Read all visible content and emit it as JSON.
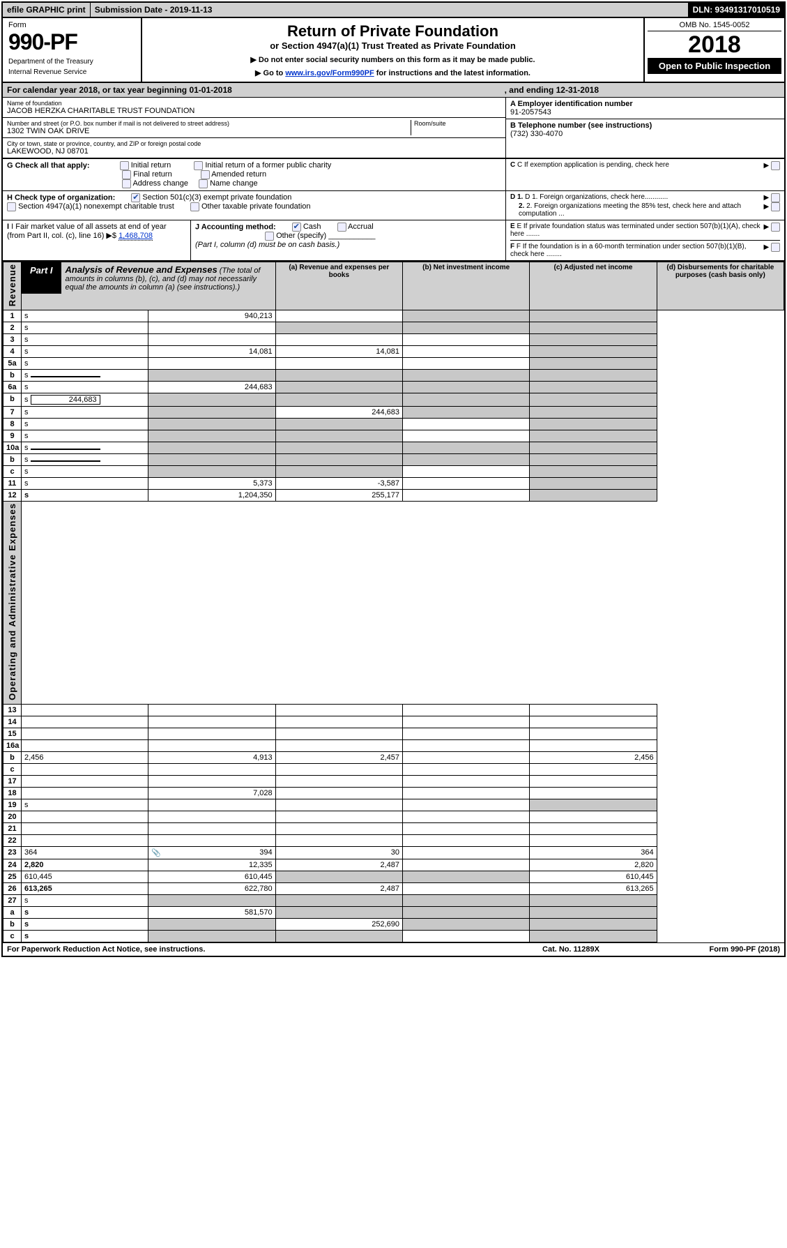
{
  "topbar": {
    "efile": "efile GRAPHIC print",
    "submission": "Submission Date - 2019-11-13",
    "dln": "DLN: 93491317010519"
  },
  "header": {
    "form_word": "Form",
    "form_num": "990-PF",
    "dept": "Department of the Treasury",
    "irs": "Internal Revenue Service",
    "title": "Return of Private Foundation",
    "subtitle": "or Section 4947(a)(1) Trust Treated as Private Foundation",
    "note1": "▶ Do not enter social security numbers on this form as it may be made public.",
    "note2a": "▶ Go to ",
    "note2_link": "www.irs.gov/Form990PF",
    "note2b": " for instructions and the latest information.",
    "omb": "OMB No. 1545-0052",
    "year": "2018",
    "open": "Open to Public Inspection"
  },
  "calyear": {
    "a": "For calendar year 2018, or tax year beginning 01-01-2018",
    "b": ", and ending 12-31-2018"
  },
  "info": {
    "name_label": "Name of foundation",
    "name": "JACOB HERZKA CHARITABLE TRUST FOUNDATION",
    "addr_label": "Number and street (or P.O. box number if mail is not delivered to street address)",
    "addr": "1302 TWIN OAK DRIVE",
    "room_label": "Room/suite",
    "city_label": "City or town, state or province, country, and ZIP or foreign postal code",
    "city": "LAKEWOOD, NJ  08701",
    "ein_label": "A Employer identification number",
    "ein": "91-2057543",
    "tel_label": "B Telephone number (see instructions)",
    "tel": "(732) 330-4070",
    "c": "C If exemption application is pending, check here",
    "d1": "D 1. Foreign organizations, check here............",
    "d2": "2. Foreign organizations meeting the 85% test, check here and attach computation ...",
    "e": "E If private foundation status was terminated under section 507(b)(1)(A), check here .......",
    "f": "F If the foundation is in a 60-month termination under section 507(b)(1)(B), check here ........"
  },
  "g": {
    "label": "G Check all that apply:",
    "initial": "Initial return",
    "initial_former": "Initial return of a former public charity",
    "final": "Final return",
    "amended": "Amended return",
    "addr_change": "Address change",
    "name_change": "Name change"
  },
  "h": {
    "label": "H Check type of organization:",
    "c3": "Section 501(c)(3) exempt private foundation",
    "4947": "Section 4947(a)(1) nonexempt charitable trust",
    "other": "Other taxable private foundation"
  },
  "i": {
    "label": "I Fair market value of all assets at end of year (from Part II, col. (c), line 16) ▶$",
    "val": "1,468,708"
  },
  "j": {
    "label": "J Accounting method:",
    "cash": "Cash",
    "accrual": "Accrual",
    "other": "Other (specify)",
    "note": "(Part I, column (d) must be on cash basis.)"
  },
  "part1": {
    "tab": "Part I",
    "title": "Analysis of Revenue and Expenses",
    "title_note": " (The total of amounts in columns (b), (c), and (d) may not necessarily equal the amounts in column (a) (see instructions).)",
    "col_a": "(a)   Revenue and expenses per books",
    "col_b": "(b)   Net investment income",
    "col_c": "(c)   Adjusted net income",
    "col_d": "(d)   Disbursements for charitable purposes (cash basis only)"
  },
  "side": {
    "rev": "Revenue",
    "exp": "Operating and Administrative Expenses"
  },
  "rows": [
    {
      "n": "1",
      "d": "s",
      "a": "940,213",
      "b": "",
      "c": "s"
    },
    {
      "n": "2",
      "d": "s",
      "a": "",
      "b": "s",
      "c": "s",
      "nobold": true
    },
    {
      "n": "3",
      "d": "s",
      "a": "",
      "b": "",
      "c": ""
    },
    {
      "n": "4",
      "d": "s",
      "a": "14,081",
      "b": "14,081",
      "c": ""
    },
    {
      "n": "5a",
      "d": "s",
      "a": "",
      "b": "",
      "c": ""
    },
    {
      "n": "b",
      "d": "s",
      "a": "s",
      "b": "s",
      "c": "s",
      "box": true
    },
    {
      "n": "6a",
      "d": "s",
      "a": "244,683",
      "b": "s",
      "c": "s"
    },
    {
      "n": "b",
      "d": "s",
      "a": "s",
      "b": "s",
      "c": "s",
      "box": true,
      "boxval": "244,683"
    },
    {
      "n": "7",
      "d": "s",
      "a": "s",
      "b": "244,683",
      "c": "s"
    },
    {
      "n": "8",
      "d": "s",
      "a": "s",
      "b": "s",
      "c": ""
    },
    {
      "n": "9",
      "d": "s",
      "a": "s",
      "b": "s",
      "c": ""
    },
    {
      "n": "10a",
      "d": "s",
      "a": "s",
      "b": "s",
      "c": "s",
      "box": true
    },
    {
      "n": "b",
      "d": "s",
      "a": "s",
      "b": "s",
      "c": "s",
      "box": true
    },
    {
      "n": "c",
      "d": "s",
      "a": "s",
      "b": "s",
      "c": ""
    },
    {
      "n": "11",
      "d": "s",
      "a": "5,373",
      "b": "-3,587",
      "c": ""
    },
    {
      "n": "12",
      "d": "s",
      "a": "1,204,350",
      "b": "255,177",
      "c": "",
      "bold": true
    }
  ],
  "exp_rows": [
    {
      "n": "13",
      "d": "",
      "a": "",
      "b": "",
      "c": ""
    },
    {
      "n": "14",
      "d": "",
      "a": "",
      "b": "",
      "c": ""
    },
    {
      "n": "15",
      "d": "",
      "a": "",
      "b": "",
      "c": ""
    },
    {
      "n": "16a",
      "d": "",
      "a": "",
      "b": "",
      "c": ""
    },
    {
      "n": "b",
      "d": "2,456",
      "a": "4,913",
      "b": "2,457",
      "c": ""
    },
    {
      "n": "c",
      "d": "",
      "a": "",
      "b": "",
      "c": ""
    },
    {
      "n": "17",
      "d": "",
      "a": "",
      "b": "",
      "c": ""
    },
    {
      "n": "18",
      "d": "",
      "a": "7,028",
      "b": "",
      "c": ""
    },
    {
      "n": "19",
      "d": "s",
      "a": "",
      "b": "",
      "c": ""
    },
    {
      "n": "20",
      "d": "",
      "a": "",
      "b": "",
      "c": ""
    },
    {
      "n": "21",
      "d": "",
      "a": "",
      "b": "",
      "c": ""
    },
    {
      "n": "22",
      "d": "",
      "a": "",
      "b": "",
      "c": ""
    },
    {
      "n": "23",
      "d": "364",
      "a": "394",
      "b": "30",
      "c": "",
      "icon": true
    },
    {
      "n": "24",
      "d": "2,820",
      "a": "12,335",
      "b": "2,487",
      "c": "",
      "bold": true
    },
    {
      "n": "25",
      "d": "610,445",
      "a": "610,445",
      "b": "s",
      "c": "s"
    },
    {
      "n": "26",
      "d": "613,265",
      "a": "622,780",
      "b": "2,487",
      "c": "",
      "bold": true
    }
  ],
  "l27": [
    {
      "n": "27",
      "d": "s",
      "a": "s",
      "b": "s",
      "c": "s"
    },
    {
      "n": "a",
      "d": "s",
      "a": "581,570",
      "b": "s",
      "c": "s",
      "bold": true
    },
    {
      "n": "b",
      "d": "s",
      "a": "s",
      "b": "252,690",
      "c": "s",
      "bold": true
    },
    {
      "n": "c",
      "d": "s",
      "a": "s",
      "b": "s",
      "c": "",
      "bold": true
    }
  ],
  "footer": {
    "left": "For Paperwork Reduction Act Notice, see instructions.",
    "mid": "Cat. No. 11289X",
    "right": "Form 990-PF (2018)"
  }
}
